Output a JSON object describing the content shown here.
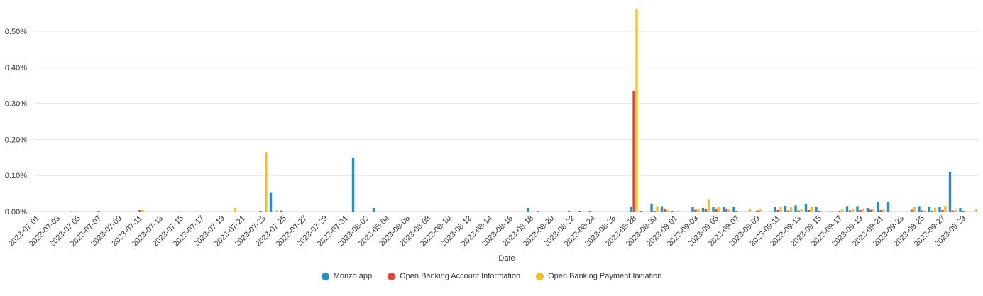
{
  "chart_data": {
    "type": "bar",
    "xlabel": "Date",
    "ylabel": "",
    "ylim": [
      0,
      0.0057
    ],
    "y_ticks": [
      0,
      0.001,
      0.002,
      0.003,
      0.004,
      0.005
    ],
    "y_tick_labels": [
      "0.00%",
      "0.10%",
      "0.20%",
      "0.30%",
      "0.40%",
      "0.50%"
    ],
    "x_tick_labels": [
      "2023-07-01",
      "2023-07-03",
      "2023-07-05",
      "2023-07-07",
      "2023-07-09",
      "2023-07-11",
      "2023-07-13",
      "2023-07-15",
      "2023-07-17",
      "2023-07-19",
      "2023-07-21",
      "2023-07-23",
      "2023-07-25",
      "2023-07-27",
      "2023-07-29",
      "2023-07-31",
      "2023-08-02",
      "2023-08-04",
      "2023-08-06",
      "2023-08-08",
      "2023-08-10",
      "2023-08-12",
      "2023-08-14",
      "2023-08-16",
      "2023-08-18",
      "2023-08-20",
      "2023-08-22",
      "2023-08-24",
      "2023-08-26",
      "2023-08-28",
      "2023-08-30",
      "2023-09-01",
      "2023-09-03",
      "2023-09-05",
      "2023-09-07",
      "2023-09-09",
      "2023-09-11",
      "2023-09-13",
      "2023-09-15",
      "2023-09-17",
      "2023-09-19",
      "2023-09-21",
      "2023-09-23",
      "2023-09-25",
      "2023-09-27",
      "2023-09-29"
    ],
    "grid": true,
    "legend_position": "bottom",
    "categories": [
      "2023-07-01",
      "2023-07-02",
      "2023-07-03",
      "2023-07-04",
      "2023-07-05",
      "2023-07-06",
      "2023-07-07",
      "2023-07-08",
      "2023-07-09",
      "2023-07-10",
      "2023-07-11",
      "2023-07-12",
      "2023-07-13",
      "2023-07-14",
      "2023-07-15",
      "2023-07-16",
      "2023-07-17",
      "2023-07-18",
      "2023-07-19",
      "2023-07-20",
      "2023-07-21",
      "2023-07-22",
      "2023-07-23",
      "2023-07-24",
      "2023-07-25",
      "2023-07-26",
      "2023-07-27",
      "2023-07-28",
      "2023-07-29",
      "2023-07-30",
      "2023-07-31",
      "2023-08-01",
      "2023-08-02",
      "2023-08-03",
      "2023-08-04",
      "2023-08-05",
      "2023-08-06",
      "2023-08-07",
      "2023-08-08",
      "2023-08-09",
      "2023-08-10",
      "2023-08-11",
      "2023-08-12",
      "2023-08-13",
      "2023-08-14",
      "2023-08-15",
      "2023-08-16",
      "2023-08-17",
      "2023-08-18",
      "2023-08-19",
      "2023-08-20",
      "2023-08-21",
      "2023-08-22",
      "2023-08-23",
      "2023-08-24",
      "2023-08-25",
      "2023-08-26",
      "2023-08-27",
      "2023-08-28",
      "2023-08-29",
      "2023-08-30",
      "2023-08-31",
      "2023-09-01",
      "2023-09-02",
      "2023-09-03",
      "2023-09-04",
      "2023-09-05",
      "2023-09-06",
      "2023-09-07",
      "2023-09-08",
      "2023-09-09",
      "2023-09-10",
      "2023-09-11",
      "2023-09-12",
      "2023-09-13",
      "2023-09-14",
      "2023-09-15",
      "2023-09-16",
      "2023-09-17",
      "2023-09-18",
      "2023-09-19",
      "2023-09-20",
      "2023-09-21",
      "2023-09-22",
      "2023-09-23",
      "2023-09-24",
      "2023-09-25",
      "2023-09-26",
      "2023-09-27",
      "2023-09-28",
      "2023-09-29",
      "2023-09-30",
      "2023-10-01"
    ],
    "series": [
      {
        "name": "Monzo app",
        "color": "#2b8cc4",
        "values": [
          0,
          0,
          0,
          0,
          0,
          0,
          0,
          0,
          0,
          0,
          0,
          0,
          0,
          0,
          0,
          0,
          0,
          0,
          0,
          0,
          0,
          0,
          2e-05,
          0.00052,
          3e-05,
          0,
          0,
          0,
          0,
          0,
          0,
          0.0015,
          0,
          0.0001,
          0,
          0,
          0,
          0,
          0,
          0,
          0,
          0,
          0,
          0,
          0,
          0,
          0,
          0,
          0.0001,
          2e-05,
          0,
          0,
          2e-05,
          2e-05,
          2e-05,
          0,
          0,
          0,
          0.00014,
          2e-05,
          0.00022,
          0.00015,
          2e-05,
          0,
          0.00013,
          0.0001,
          0.00012,
          0.00014,
          0.00013,
          0,
          0,
          0,
          0.00012,
          0.00016,
          0.00017,
          0.00022,
          0.00014,
          0,
          0,
          0.00015,
          0.00015,
          0.0001,
          0.00027,
          0.00027,
          0,
          0,
          0.00015,
          0.00014,
          0.00012,
          0.0011,
          0.0001,
          0,
          0
        ],
        "values_note": ""
      },
      {
        "name": "Open Banking Account Information",
        "color": "#e04a3a",
        "values": [
          0,
          0,
          0,
          0,
          0,
          0,
          2e-05,
          0,
          0,
          0,
          4e-05,
          0,
          0,
          0,
          0,
          0,
          0,
          0,
          0,
          0,
          0,
          0,
          0,
          0,
          0,
          0,
          0,
          0,
          0,
          0,
          0,
          0,
          0,
          0,
          0,
          0,
          0,
          0,
          0,
          0,
          0,
          0,
          0,
          0,
          0,
          0,
          0,
          0,
          0,
          0,
          0,
          0,
          0,
          0,
          0,
          0,
          0,
          0,
          0.00335,
          0,
          2e-05,
          7e-05,
          0,
          0,
          5e-05,
          6e-05,
          8e-05,
          6e-05,
          2e-05,
          0,
          3e-05,
          0,
          4e-05,
          3e-05,
          3e-05,
          4e-05,
          2e-05,
          0,
          2e-05,
          3e-05,
          4e-05,
          5e-05,
          4e-05,
          0,
          0,
          5e-05,
          3e-05,
          2e-05,
          4e-05,
          3e-05,
          2e-05,
          0,
          0
        ]
      },
      {
        "name": "Open Banking Payment Initiation",
        "color": "#f2c12e",
        "values": [
          0,
          0,
          0,
          2e-05,
          0,
          0,
          0,
          0,
          0,
          0,
          4e-05,
          0,
          0,
          0,
          0,
          0,
          0,
          0,
          0,
          0.0001,
          0,
          0,
          0.00165,
          3e-05,
          0,
          0,
          0,
          0,
          0,
          0,
          0,
          0,
          0,
          0,
          0,
          0,
          0,
          0,
          0,
          0,
          0,
          0,
          0,
          0,
          0,
          0,
          0,
          0,
          0,
          0,
          0,
          0,
          0,
          0,
          0,
          0,
          0,
          0,
          0.00562,
          0,
          0.00015,
          4e-05,
          2e-05,
          0,
          8e-05,
          0.00033,
          0.00013,
          6e-05,
          0,
          7e-05,
          6e-05,
          0,
          0.00013,
          0.00013,
          6e-05,
          0.00013,
          2e-05,
          2e-05,
          6e-05,
          6e-05,
          6e-05,
          6e-05,
          6e-05,
          0,
          0,
          0.00013,
          3e-05,
          0.0001,
          0.00016,
          5e-05,
          0,
          6e-05,
          0
        ]
      }
    ]
  }
}
